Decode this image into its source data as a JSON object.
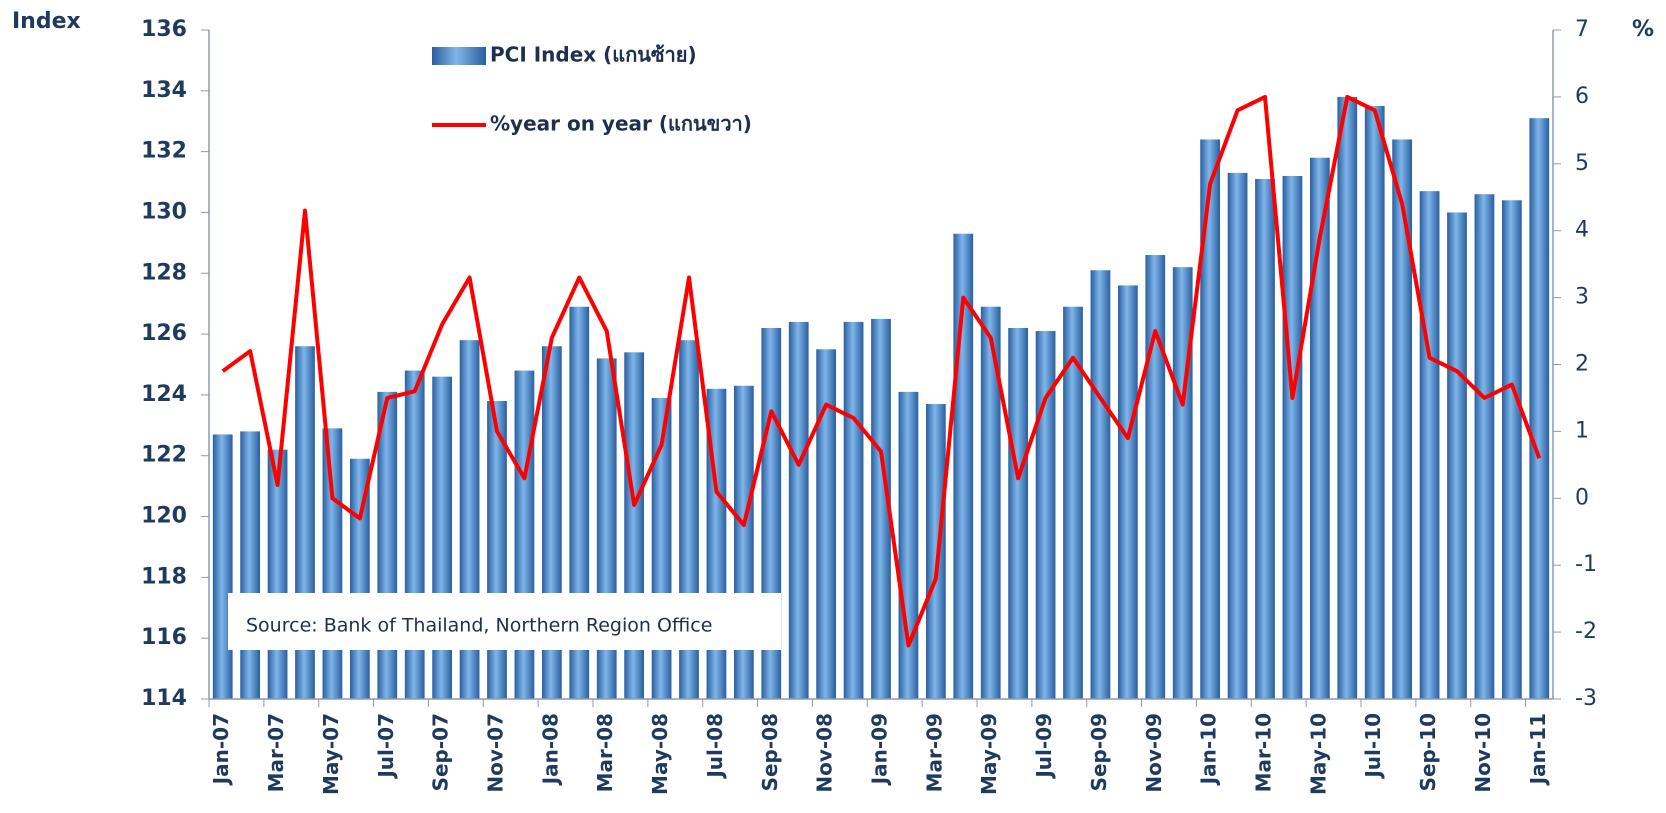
{
  "chart_data": {
    "type": "bar-line",
    "ylabel": "Index",
    "y2label": "%",
    "annotation": "Source: Bank of Thailand, Northern Region Office",
    "categories": [
      "Jan-07",
      null,
      "Mar-07",
      null,
      "May-07",
      null,
      "Jul-07",
      null,
      "Sep-07",
      null,
      "Nov-07",
      null,
      "Jan-08",
      null,
      "Mar-08",
      null,
      "May-08",
      null,
      "Jul-08",
      null,
      "Sep-08",
      null,
      "Nov-08",
      null,
      "Jan-09",
      null,
      "Mar-09",
      null,
      "May-09",
      null,
      "Jul-09",
      null,
      "Sep-09",
      null,
      "Nov-09",
      null,
      "Jan-10",
      null,
      "Mar-10",
      null,
      "May-10",
      null,
      "Jul-10",
      null,
      "Sep-10",
      null,
      "Nov-10",
      null,
      "Jan-11"
    ],
    "series": [
      {
        "name": "PCI Index (แกนซ้าย)",
        "type": "bar",
        "color": "#4a8fd4",
        "values": [
          122.7,
          122.8,
          122.2,
          125.6,
          122.9,
          121.9,
          124.1,
          124.8,
          124.6,
          125.8,
          123.8,
          124.8,
          125.6,
          126.9,
          125.2,
          125.4,
          123.9,
          125.8,
          124.2,
          124.3,
          126.2,
          126.4,
          125.5,
          126.4,
          126.5,
          124.1,
          123.7,
          129.3,
          126.9,
          126.2,
          126.1,
          126.9,
          128.1,
          127.6,
          128.6,
          128.2,
          132.4,
          131.3,
          131.1,
          131.2,
          131.8,
          133.8,
          133.5,
          132.4,
          130.7,
          130.0,
          130.6,
          130.4,
          133.1
        ]
      },
      {
        "name": "%year on year (แกนขวา)",
        "type": "line",
        "axis": "y2",
        "color": "#ff0000",
        "values": [
          1.9,
          2.2,
          0.2,
          4.3,
          0.0,
          -0.3,
          1.5,
          1.6,
          2.6,
          3.3,
          1.0,
          0.3,
          2.4,
          3.3,
          2.5,
          -0.1,
          0.8,
          3.3,
          0.1,
          -0.4,
          1.3,
          0.5,
          1.4,
          1.2,
          0.7,
          -2.2,
          -1.2,
          3.0,
          2.4,
          0.3,
          1.5,
          2.1,
          1.5,
          0.9,
          2.5,
          1.4,
          4.7,
          5.8,
          6.0,
          1.5,
          3.9,
          6.0,
          5.8,
          4.4,
          2.1,
          1.9,
          1.5,
          1.7,
          0.6
        ]
      }
    ],
    "ylim": [
      114,
      136
    ],
    "yticks": [
      114,
      116,
      118,
      120,
      122,
      124,
      126,
      128,
      130,
      132,
      134,
      136
    ],
    "y2lim": [
      -3,
      7
    ],
    "y2ticks": [
      -3,
      -2,
      -1,
      0,
      1,
      2,
      3,
      4,
      5,
      6,
      7
    ],
    "grid": false,
    "legend": "top-left"
  }
}
